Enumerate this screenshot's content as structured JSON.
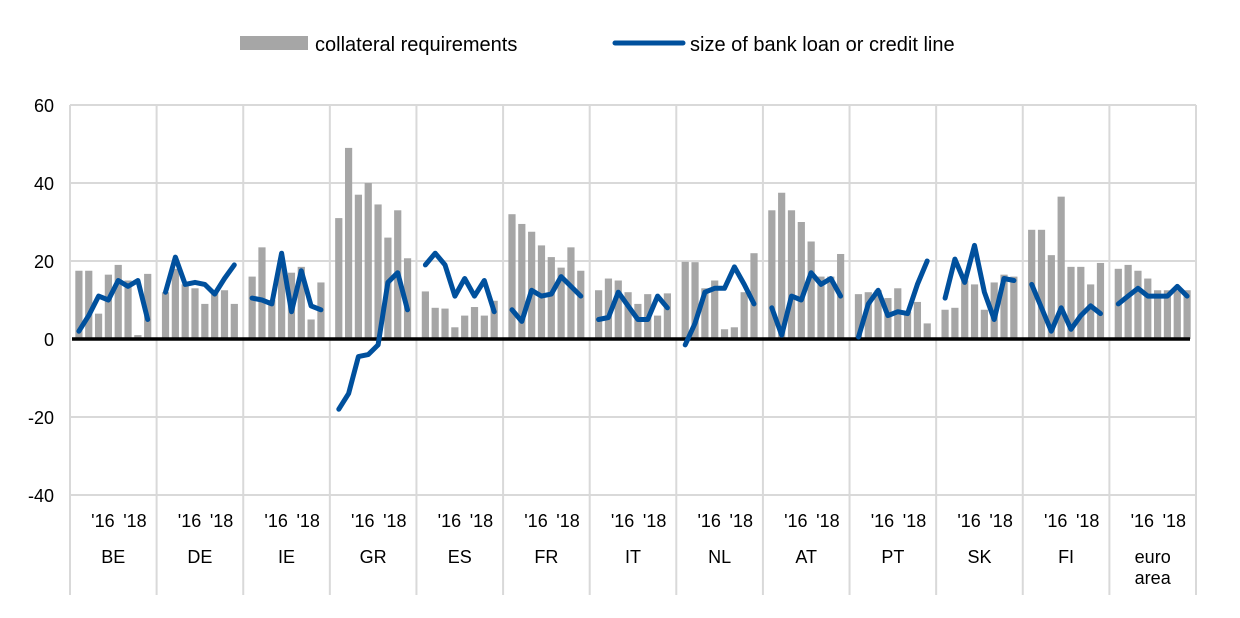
{
  "chart_data": {
    "type": "bar+line",
    "title": "",
    "legend": {
      "placement": "top-center",
      "entries": [
        "collateral requirements",
        "size of bank loan or credit line"
      ]
    },
    "ylim": [
      -40,
      60
    ],
    "yticks": [
      -40,
      -20,
      0,
      20,
      40,
      60
    ],
    "grid": true,
    "colors": {
      "bars": "#a6a6a6",
      "line": "#00509d",
      "zero": "#000000",
      "grid": "#d9d9d9"
    },
    "year_ticks": [
      "'16",
      "'18"
    ],
    "groups": [
      {
        "name": "BE",
        "bars": [
          17.5,
          17.5,
          6.5,
          16.5,
          19,
          15,
          1,
          16.7
        ],
        "line": [
          2,
          6,
          11,
          10,
          15,
          13.5,
          15,
          5
        ]
      },
      {
        "name": "DE",
        "bars": [
          12,
          18,
          14,
          13,
          9,
          12,
          12.5,
          9
        ],
        "line": [
          12,
          21,
          14,
          14.5,
          14,
          11.5,
          15.5,
          19
        ]
      },
      {
        "name": "IE",
        "bars": [
          16,
          23.5,
          10,
          20,
          17,
          18.5,
          5,
          14.5
        ],
        "line": [
          10.5,
          10,
          9,
          22,
          7,
          17.5,
          8.5,
          7.5
        ]
      },
      {
        "name": "GR",
        "bars": [
          31,
          49,
          37,
          40,
          34.5,
          26,
          33,
          20.7
        ],
        "line": [
          -18,
          -14,
          -4.5,
          -4,
          -1.5,
          14.5,
          17,
          7.5
        ]
      },
      {
        "name": "ES",
        "bars": [
          12.2,
          8,
          7.8,
          3,
          6,
          8.2,
          6,
          9.8
        ],
        "line": [
          19,
          22,
          19,
          11,
          15.5,
          11,
          15,
          7
        ]
      },
      {
        "name": "FR",
        "bars": [
          32,
          29.5,
          27.5,
          24,
          21,
          18.3,
          23.5,
          17.5
        ],
        "line": [
          7.5,
          4.5,
          12.5,
          11,
          11.5,
          16,
          13.5,
          11
        ]
      },
      {
        "name": "IT",
        "bars": [
          12.5,
          15.5,
          15,
          12,
          9,
          11.5,
          6,
          11.7
        ],
        "line": [
          5,
          5.5,
          12,
          8.5,
          5,
          5,
          11,
          8
        ]
      },
      {
        "name": "NL",
        "bars": [
          19.8,
          19.7,
          13,
          15,
          2.5,
          3,
          12,
          22
        ],
        "line": [
          -1.5,
          4,
          12,
          13,
          13,
          18.5,
          14,
          9
        ]
      },
      {
        "name": "AT",
        "bars": [
          33,
          37.5,
          33,
          30,
          25,
          16,
          16,
          21.8
        ],
        "line": [
          8,
          1,
          11,
          10,
          17,
          14,
          15.5,
          11
        ]
      },
      {
        "name": "PT",
        "bars": [
          11.5,
          12,
          12.5,
          10.5,
          13,
          7,
          9.5,
          4
        ],
        "line": [
          0.5,
          9,
          12.5,
          6,
          7,
          6.5,
          14,
          20
        ]
      },
      {
        "name": "SK",
        "bars": [
          7.5,
          8,
          15,
          14,
          7.5,
          14.5,
          16.5,
          16
        ],
        "line": [
          10.5,
          20.5,
          14.5,
          24,
          12,
          5,
          15.5,
          15
        ]
      },
      {
        "name": "FI",
        "bars": [
          28,
          28,
          21.5,
          36.5,
          18.5,
          18.5,
          14,
          19.5
        ],
        "line": [
          14,
          8,
          2,
          8,
          2.5,
          6,
          8.5,
          6.5
        ]
      },
      {
        "name": "euro area",
        "bars": [
          18,
          19,
          17.5,
          15.5,
          12.5,
          12.5,
          12.5,
          12.5
        ],
        "line": [
          9,
          11,
          13,
          11,
          11,
          11,
          13.5,
          11
        ]
      }
    ]
  }
}
